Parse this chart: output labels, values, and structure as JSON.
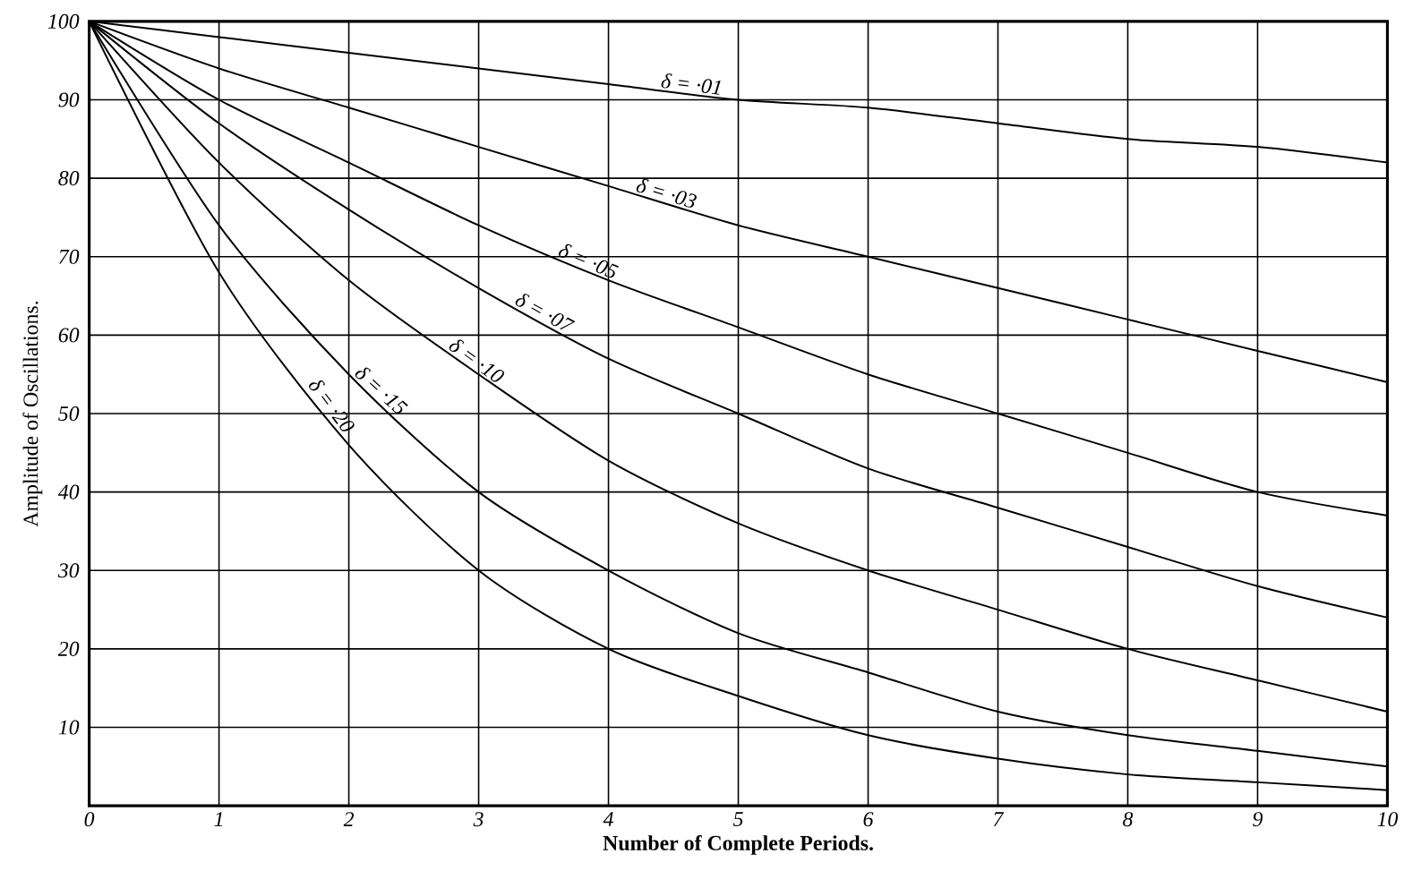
{
  "chart_data": {
    "type": "line",
    "xlabel": "Number of Complete Periods.",
    "ylabel": "Amplitude of Oscillations.",
    "x": [
      0,
      1,
      2,
      3,
      4,
      5,
      6,
      7,
      8,
      9,
      10
    ],
    "series": [
      {
        "name": "δ = ·01",
        "color": "#000000",
        "values": [
          100,
          98,
          96,
          94,
          92,
          90,
          89,
          87,
          85,
          84,
          82
        ]
      },
      {
        "name": "δ = ·03",
        "color": "#000000",
        "values": [
          100,
          94,
          89,
          84,
          79,
          74,
          70,
          66,
          62,
          58,
          54
        ]
      },
      {
        "name": "δ = ·05",
        "color": "#000000",
        "values": [
          100,
          90,
          82,
          74,
          67,
          61,
          55,
          50,
          45,
          40,
          37
        ]
      },
      {
        "name": "δ = ·07",
        "color": "#000000",
        "values": [
          100,
          87,
          76,
          66,
          57,
          50,
          43,
          38,
          33,
          28,
          24
        ]
      },
      {
        "name": "δ = ·10",
        "color": "#000000",
        "values": [
          100,
          82,
          67,
          55,
          44,
          36,
          30,
          25,
          20,
          16,
          12
        ]
      },
      {
        "name": "δ = ·15",
        "color": "#000000",
        "values": [
          100,
          74,
          55,
          40,
          30,
          22,
          17,
          12,
          9,
          7,
          5
        ]
      },
      {
        "name": "δ = ·20",
        "color": "#000000",
        "values": [
          100,
          68,
          46,
          30,
          20,
          14,
          9,
          6,
          4,
          3,
          2
        ]
      }
    ],
    "xlim": [
      0,
      10
    ],
    "ylim": [
      0,
      100
    ],
    "xticks": [
      0,
      1,
      2,
      3,
      4,
      5,
      6,
      7,
      8,
      9,
      10
    ],
    "yticks": [
      10,
      20,
      30,
      40,
      50,
      60,
      70,
      80,
      90,
      100
    ],
    "grid": true,
    "marker": "none",
    "line_style": "solid",
    "legend": false
  }
}
